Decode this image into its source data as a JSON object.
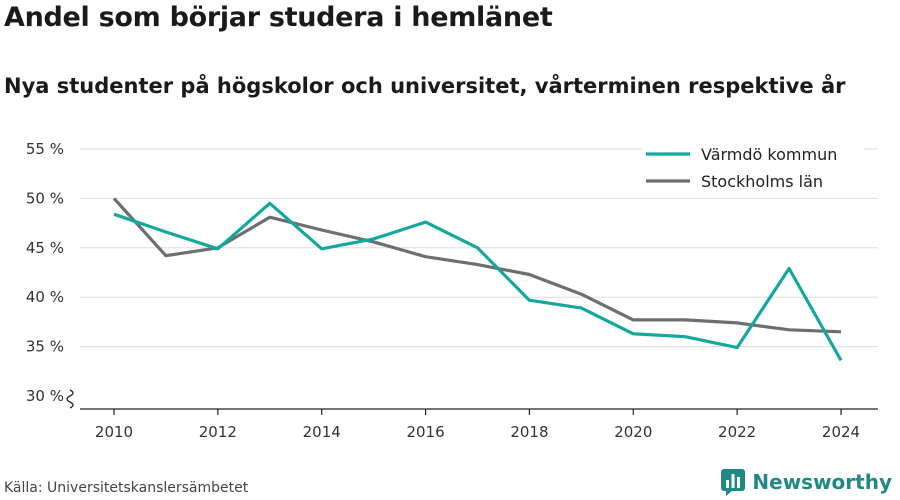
{
  "header": {
    "title": "Andel som börjar studera i hemlänet",
    "subtitle": "Nya studenter på högskolor och universitet, vårterminen respektive år"
  },
  "footer": {
    "source": "Källa: Universitetskanslersämbetet",
    "brand_name": "Newsworthy",
    "brand_icon": "newsworthy-logo-icon"
  },
  "colors": {
    "series_0": "#13a89e",
    "series_1": "#6d6e71",
    "grid": "#dddddd",
    "axis": "#222222",
    "brand": "#1f8a85"
  },
  "chart_data": {
    "type": "line",
    "title": "Andel som börjar studera i hemlänet",
    "subtitle": "Nya studenter på högskolor och universitet, vårterminen respektive år",
    "xlabel": "",
    "ylabel": "",
    "x": [
      2010,
      2011,
      2012,
      2013,
      2014,
      2015,
      2016,
      2017,
      2018,
      2019,
      2020,
      2021,
      2022,
      2023,
      2024
    ],
    "x_ticks": [
      2010,
      2012,
      2014,
      2016,
      2018,
      2020,
      2022,
      2024
    ],
    "y_ticks": [
      30,
      35,
      40,
      45,
      50,
      55
    ],
    "y_tick_labels": [
      "30 %",
      "35 %",
      "40 %",
      "45 %",
      "50 %",
      "55 %"
    ],
    "ylim": [
      30,
      55
    ],
    "xlim": [
      2010,
      2024
    ],
    "y_axis_break": true,
    "grid": "horizontal",
    "legend_position": "top-right",
    "series": [
      {
        "name": "Värmdö kommun",
        "color": "#13a89e",
        "values": [
          48.4,
          46.6,
          44.9,
          49.5,
          44.9,
          45.9,
          47.6,
          45.0,
          39.7,
          38.9,
          36.3,
          36.0,
          34.9,
          42.9,
          33.6
        ]
      },
      {
        "name": "Stockholms län",
        "color": "#6d6e71",
        "values": [
          50.0,
          44.2,
          45.0,
          48.1,
          46.8,
          45.6,
          44.1,
          43.3,
          42.3,
          40.3,
          37.7,
          37.7,
          37.4,
          36.7,
          36.5
        ]
      }
    ]
  }
}
